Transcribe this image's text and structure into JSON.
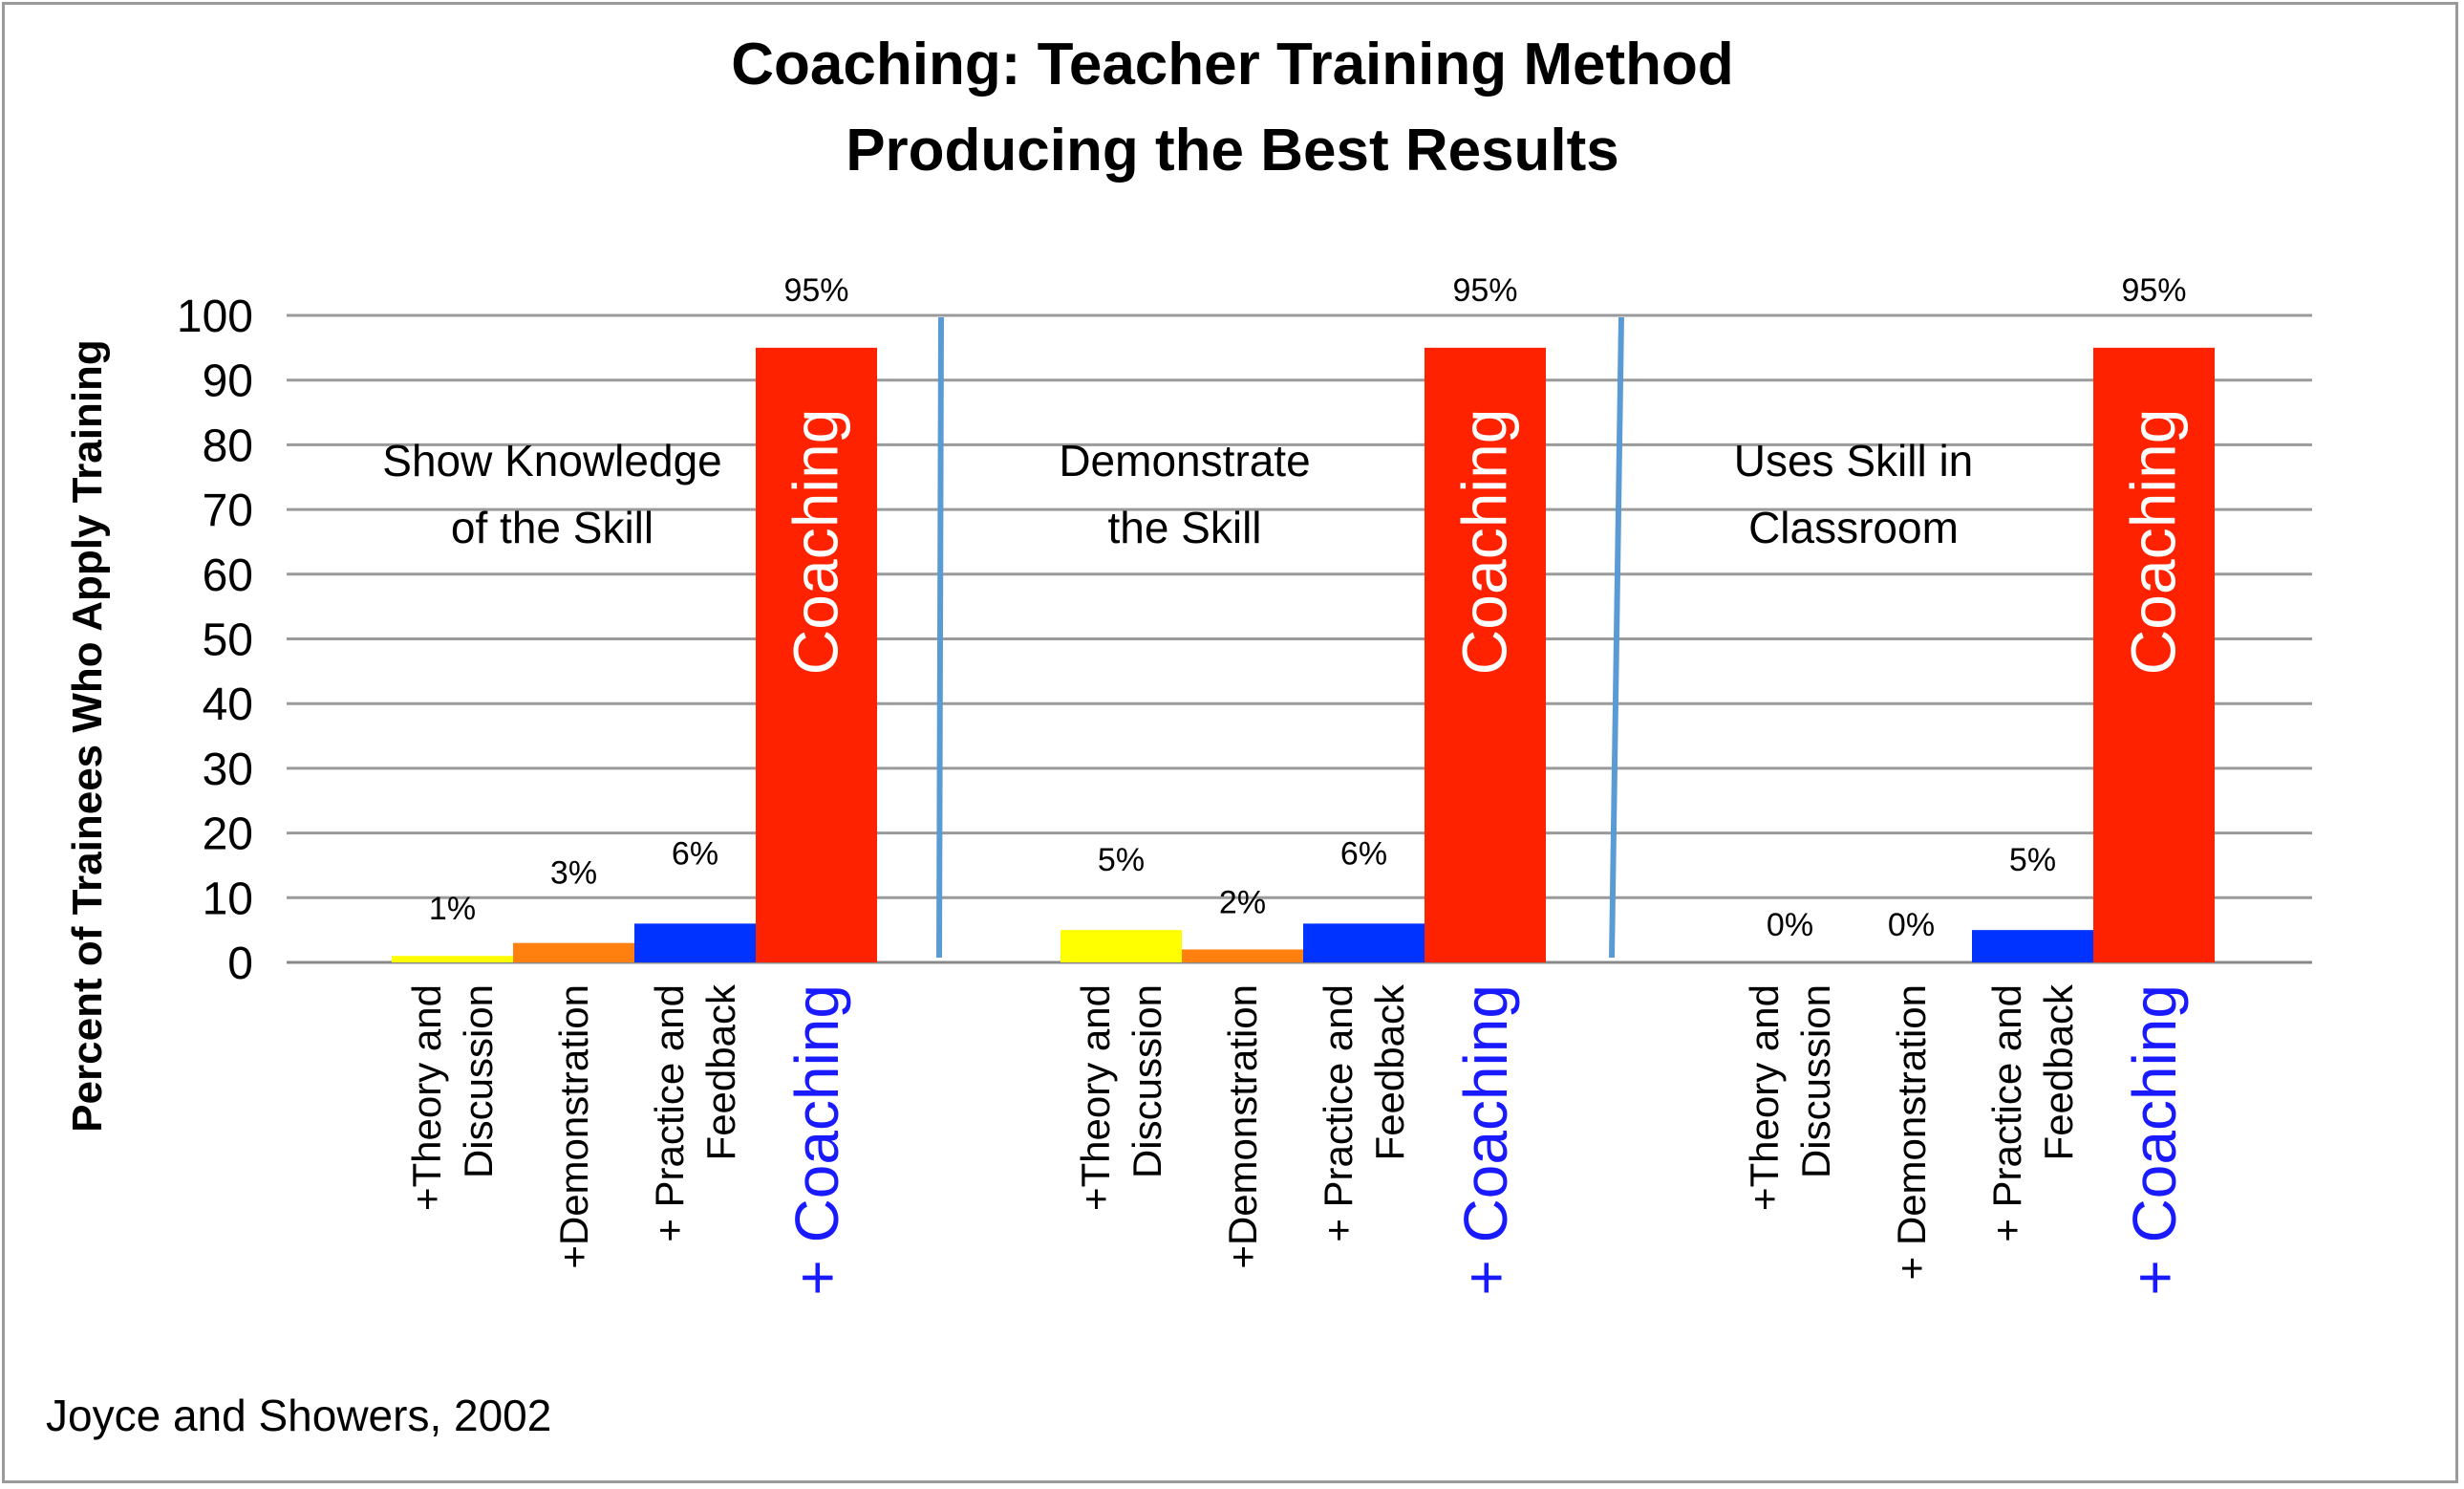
{
  "chart_data": {
    "type": "bar",
    "title_lines": [
      "Coaching: Teacher Training Method",
      "Producing the Best Results"
    ],
    "ylabel": "Percent of Trainees Who Apply Training",
    "ylim": [
      0,
      100
    ],
    "yticks": [
      "0",
      "10",
      "20",
      "30",
      "40",
      "50",
      "60",
      "70",
      "80",
      "90",
      "100"
    ],
    "grid": true,
    "source": "Joyce and Showers, 2002",
    "groups": [
      {
        "label_lines": [
          "Show Knowledge",
          "of the Skill"
        ],
        "bars": [
          {
            "category_lines": [
              "+Theory and",
              "Discussion"
            ],
            "value": 1,
            "data_label": "1%",
            "color": "#ffff00"
          },
          {
            "category_lines": [
              "+Demonstration"
            ],
            "value": 3,
            "data_label": "3%",
            "color": "#ff7f0f"
          },
          {
            "category_lines": [
              "+ Practice and",
              "Feedback"
            ],
            "value": 6,
            "data_label": "6%",
            "color": "#0033ff"
          },
          {
            "category_lines": [
              "+ Coaching"
            ],
            "value": 95,
            "data_label": "95%",
            "color": "#ff2200",
            "inner_label": "Coaching",
            "category_color": "#1a1aff"
          }
        ]
      },
      {
        "label_lines": [
          "Demonstrate",
          "the Skill"
        ],
        "bars": [
          {
            "category_lines": [
              "+Theory and",
              "Discussion"
            ],
            "value": 5,
            "data_label": "5%",
            "color": "#ffff00"
          },
          {
            "category_lines": [
              "+Demonstration"
            ],
            "value": 2,
            "data_label": "2%",
            "color": "#ff7f0f"
          },
          {
            "category_lines": [
              "+ Practice and",
              "Feedback"
            ],
            "value": 6,
            "data_label": "6%",
            "color": "#0033ff"
          },
          {
            "category_lines": [
              "+ Coaching"
            ],
            "value": 95,
            "data_label": "95%",
            "color": "#ff2200",
            "inner_label": "Coaching",
            "category_color": "#1a1aff"
          }
        ]
      },
      {
        "label_lines": [
          "Uses Skill in",
          "Classroom"
        ],
        "bars": [
          {
            "category_lines": [
              "+Theory and",
              "Discussion"
            ],
            "value": 0,
            "data_label": "0%",
            "color": "#ffff00"
          },
          {
            "category_lines": [
              "+ Demonstration"
            ],
            "value": 0,
            "data_label": "0%",
            "color": "#ff7f0f"
          },
          {
            "category_lines": [
              "+ Practice and",
              "Feedback"
            ],
            "value": 5,
            "data_label": "5%",
            "color": "#0033ff"
          },
          {
            "category_lines": [
              "+ Coaching"
            ],
            "value": 95,
            "data_label": "95%",
            "color": "#ff2200",
            "inner_label": "Coaching",
            "category_color": "#1a1aff"
          }
        ]
      }
    ],
    "colors": {
      "grid": "#9a9a9a",
      "separator": "#5b9bd5",
      "inner_label": "#ffffff",
      "text": "#000000"
    }
  }
}
